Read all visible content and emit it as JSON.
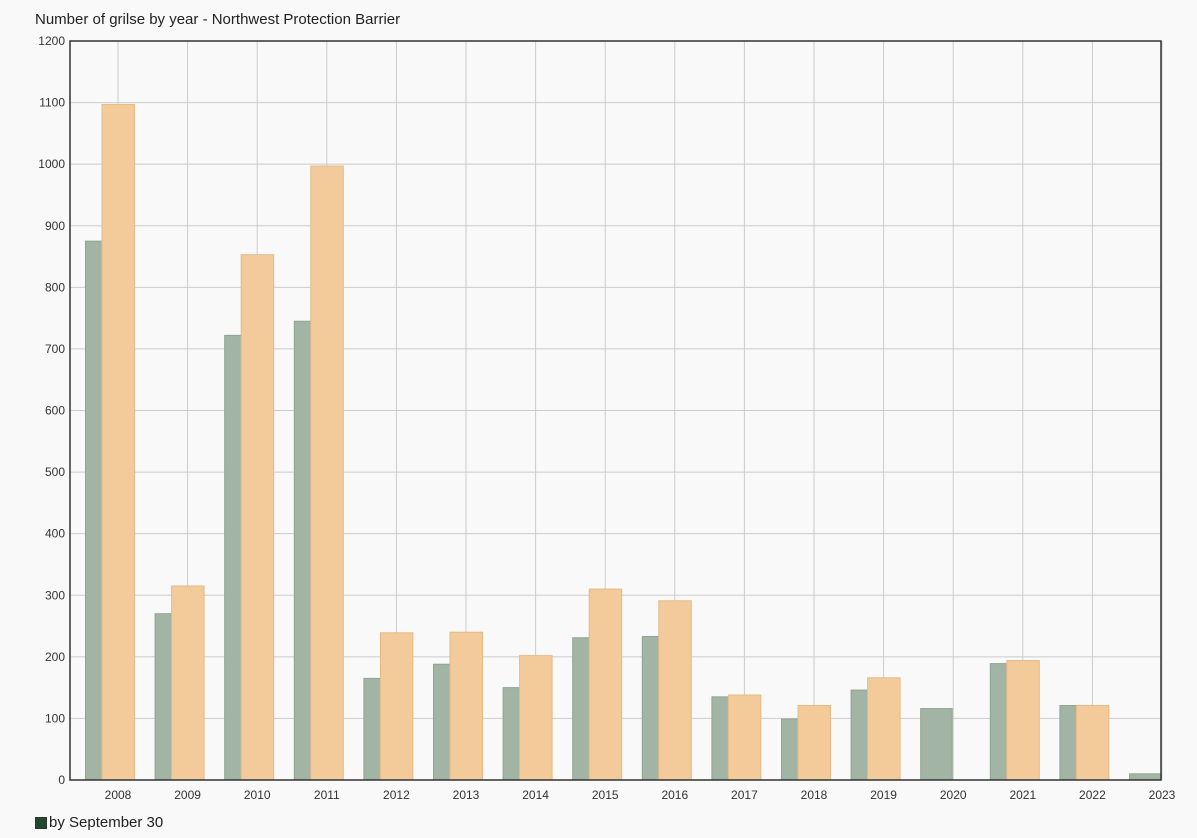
{
  "chart_data": {
    "type": "bar",
    "title": "Number of grilse by year - Northwest Protection Barrier",
    "xlabel": "",
    "ylabel": "",
    "ylim": [
      0,
      1200
    ],
    "yticks": [
      0,
      100,
      200,
      300,
      400,
      500,
      600,
      700,
      800,
      900,
      1000,
      1100,
      1200
    ],
    "categories": [
      "2008",
      "2009",
      "2010",
      "2011",
      "2012",
      "2013",
      "2014",
      "2015",
      "2016",
      "2017",
      "2018",
      "2019",
      "2020",
      "2021",
      "2022",
      "2023"
    ],
    "grid": true,
    "legend_placement": "bottom-left",
    "series": [
      {
        "name": "by September 30",
        "color": "#a2b5a4",
        "legend_swatch_color": "#1e4a2a",
        "values": [
          875,
          270,
          722,
          745,
          165,
          188,
          150,
          231,
          233,
          135,
          99,
          146,
          116,
          189,
          121,
          10
        ]
      },
      {
        "color": "#f3cb9a",
        "values": [
          1097,
          315,
          853,
          997,
          239,
          240,
          202,
          310,
          291,
          138,
          121,
          166,
          0,
          194,
          121,
          0
        ]
      }
    ]
  }
}
